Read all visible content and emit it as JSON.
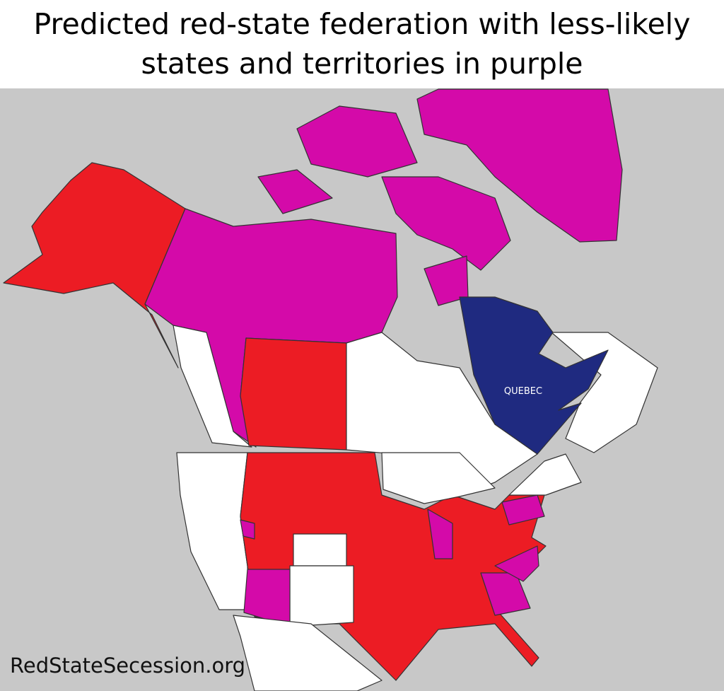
{
  "title": "Predicted red-state federation with less-likely states and territories in purple",
  "map": {
    "label": "QUEBEC"
  },
  "watermark": "RedStateSecession.org"
}
